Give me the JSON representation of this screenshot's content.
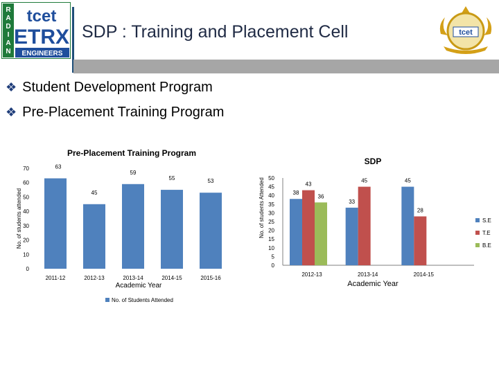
{
  "header": {
    "title": "SDP : Training and Placement Cell",
    "logo_left": {
      "lines": [
        "tcet",
        "ETRX",
        "ENGINEERS",
        "RADIANT"
      ]
    },
    "logo_right": {
      "text": "tcet"
    }
  },
  "bullets": [
    {
      "icon": "diamond-bullet-icon",
      "label": "Student Development Program"
    },
    {
      "icon": "diamond-bullet-icon",
      "label": "Pre-Placement Training Program"
    }
  ],
  "chart_data": [
    {
      "type": "bar",
      "title": "Pre-Placement Training Program",
      "xlabel": "Academic Year",
      "ylabel": "No. of students attended",
      "categories": [
        "2011-12",
        "2012-13",
        "2013-14",
        "2014-15",
        "2015-16"
      ],
      "series": [
        {
          "name": "No. of Students Attended",
          "values": [
            63,
            45,
            59,
            55,
            53
          ],
          "color": "#4f81bd"
        }
      ],
      "ylim": [
        0,
        70
      ],
      "yticks": [
        0,
        10,
        20,
        30,
        40,
        50,
        60,
        70
      ],
      "legend": "bottom"
    },
    {
      "type": "bar",
      "title": "SDP",
      "xlabel": "Academic Year",
      "ylabel": "No. of students Attended",
      "categories": [
        "2012-13",
        "2013-14",
        "2014-15"
      ],
      "series": [
        {
          "name": "S.E",
          "values": [
            38,
            33,
            45
          ],
          "color": "#4f81bd"
        },
        {
          "name": "T.E",
          "values": [
            43,
            45,
            28
          ],
          "color": "#c0504d"
        },
        {
          "name": "B.E",
          "values": [
            36,
            null,
            null
          ],
          "color": "#9bbb59"
        }
      ],
      "ylim": [
        0,
        50
      ],
      "yticks": [
        0,
        5,
        10,
        15,
        20,
        25,
        30,
        35,
        40,
        45,
        50
      ],
      "legend": "right"
    }
  ]
}
